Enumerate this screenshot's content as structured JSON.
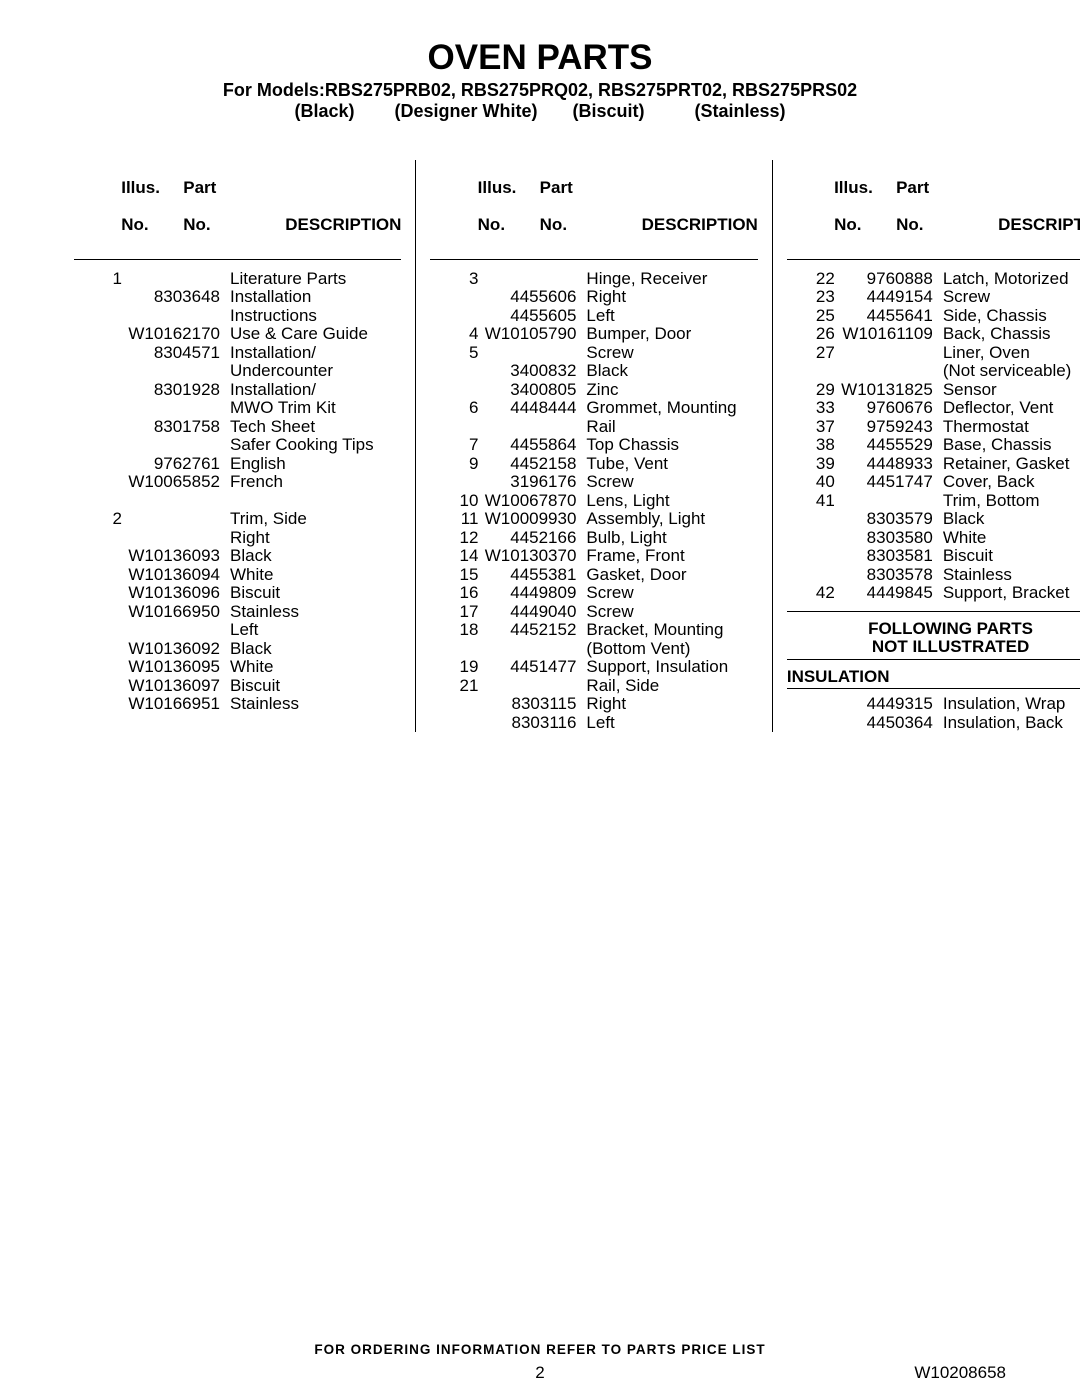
{
  "title": "OVEN PARTS",
  "subtitle_line1": "For Models:RBS275PRB02, RBS275PRQ02, RBS275PRT02, RBS275PRS02",
  "subtitle_line2": "(Black)        (Designer White)       (Biscuit)          (Stainless)",
  "headers": {
    "illus_line1": "Illus.",
    "illus_line2": "No.",
    "part_line1": "Part",
    "part_line2": "No.",
    "desc": "DESCRIPTION"
  },
  "footer": "FOR ORDERING INFORMATION REFER TO PARTS PRICE LIST",
  "page_number": "2",
  "doc_number": "W10208658",
  "section_not_illustrated_line1": "FOLLOWING PARTS",
  "section_not_illustrated_line2": "NOT ILLUSTRATED",
  "section_insulation": "INSULATION",
  "col1": [
    {
      "illus": "1",
      "part": "",
      "desc": "Literature Parts"
    },
    {
      "illus": "",
      "part": "8303648",
      "desc": "Installation"
    },
    {
      "illus": "",
      "part": "",
      "desc": "Instructions"
    },
    {
      "illus": "",
      "part": "W10162170",
      "desc": "Use & Care Guide"
    },
    {
      "illus": "",
      "part": "8304571",
      "desc": "Installation/"
    },
    {
      "illus": "",
      "part": "",
      "desc": "Undercounter"
    },
    {
      "illus": "",
      "part": "8301928",
      "desc": "Installation/"
    },
    {
      "illus": "",
      "part": "",
      "desc": "MWO Trim Kit"
    },
    {
      "illus": "",
      "part": "8301758",
      "desc": "Tech Sheet"
    },
    {
      "illus": "",
      "part": "",
      "desc": "Safer Cooking Tips"
    },
    {
      "illus": "",
      "part": "9762761",
      "desc": "English"
    },
    {
      "illus": "",
      "part": "W10065852",
      "desc": "French"
    },
    {
      "illus": "",
      "part": "",
      "desc": ""
    },
    {
      "illus": "2",
      "part": "",
      "desc": "Trim, Side"
    },
    {
      "illus": "",
      "part": "",
      "desc": "Right"
    },
    {
      "illus": "",
      "part": "W10136093",
      "desc": "Black"
    },
    {
      "illus": "",
      "part": "W10136094",
      "desc": "White"
    },
    {
      "illus": "",
      "part": "W10136096",
      "desc": "Biscuit"
    },
    {
      "illus": "",
      "part": "W10166950",
      "desc": "Stainless"
    },
    {
      "illus": "",
      "part": "",
      "desc": "Left"
    },
    {
      "illus": "",
      "part": "W10136092",
      "desc": "Black"
    },
    {
      "illus": "",
      "part": "W10136095",
      "desc": "White"
    },
    {
      "illus": "",
      "part": "W10136097",
      "desc": "Biscuit"
    },
    {
      "illus": "",
      "part": "W10166951",
      "desc": "Stainless"
    }
  ],
  "col2": [
    {
      "illus": "3",
      "part": "",
      "desc": "Hinge, Receiver"
    },
    {
      "illus": "",
      "part": "4455606",
      "desc": "Right"
    },
    {
      "illus": "",
      "part": "4455605",
      "desc": "Left"
    },
    {
      "illus": "4",
      "part": "W10105790",
      "desc": "Bumper, Door"
    },
    {
      "illus": "5",
      "part": "",
      "desc": "Screw"
    },
    {
      "illus": "",
      "part": "3400832",
      "desc": "Black"
    },
    {
      "illus": "",
      "part": "3400805",
      "desc": "Zinc"
    },
    {
      "illus": "6",
      "part": "4448444",
      "desc": "Grommet, Mounting"
    },
    {
      "illus": "",
      "part": "",
      "desc": "Rail"
    },
    {
      "illus": "7",
      "part": "4455864",
      "desc": "Top Chassis"
    },
    {
      "illus": "9",
      "part": "4452158",
      "desc": "Tube, Vent"
    },
    {
      "illus": "",
      "part": "3196176",
      "desc": "Screw"
    },
    {
      "illus": "10",
      "part": "W10067870",
      "desc": "Lens, Light"
    },
    {
      "illus": "11",
      "part": "W10009930",
      "desc": "Assembly, Light"
    },
    {
      "illus": "12",
      "part": "4452166",
      "desc": "Bulb, Light"
    },
    {
      "illus": "14",
      "part": "W10130370",
      "desc": "Frame, Front"
    },
    {
      "illus": "15",
      "part": "4455381",
      "desc": "Gasket, Door"
    },
    {
      "illus": "16",
      "part": "4449809",
      "desc": "Screw"
    },
    {
      "illus": "17",
      "part": "4449040",
      "desc": "Screw"
    },
    {
      "illus": "18",
      "part": "4452152",
      "desc": "Bracket, Mounting"
    },
    {
      "illus": "",
      "part": "",
      "desc": "(Bottom Vent)"
    },
    {
      "illus": "19",
      "part": "4451477",
      "desc": "Support, Insulation"
    },
    {
      "illus": "21",
      "part": "",
      "desc": "Rail, Side"
    },
    {
      "illus": "",
      "part": "8303115",
      "desc": "Right"
    },
    {
      "illus": "",
      "part": "8303116",
      "desc": "Left"
    }
  ],
  "col3_main": [
    {
      "illus": "22",
      "part": "9760888",
      "desc": "Latch, Motorized"
    },
    {
      "illus": "23",
      "part": "4449154",
      "desc": "Screw"
    },
    {
      "illus": "25",
      "part": "4455641",
      "desc": "Side, Chassis"
    },
    {
      "illus": "26",
      "part": "W10161109",
      "desc": "Back, Chassis"
    },
    {
      "illus": "27",
      "part": "",
      "desc": "Liner, Oven"
    },
    {
      "illus": "",
      "part": "",
      "desc": "(Not serviceable)"
    },
    {
      "illus": "29",
      "part": "W10131825",
      "desc": "Sensor"
    },
    {
      "illus": "33",
      "part": "9760676",
      "desc": "Deflector, Vent"
    },
    {
      "illus": "37",
      "part": "9759243",
      "desc": "Thermostat"
    },
    {
      "illus": "38",
      "part": "4455529",
      "desc": "Base, Chassis"
    },
    {
      "illus": "39",
      "part": "4448933",
      "desc": "Retainer, Gasket"
    },
    {
      "illus": "40",
      "part": "4451747",
      "desc": "Cover, Back"
    },
    {
      "illus": "41",
      "part": "",
      "desc": "Trim, Bottom"
    },
    {
      "illus": "",
      "part": "8303579",
      "desc": "Black"
    },
    {
      "illus": "",
      "part": "8303580",
      "desc": "White"
    },
    {
      "illus": "",
      "part": "8303581",
      "desc": "Biscuit"
    },
    {
      "illus": "",
      "part": "8303578",
      "desc": "Stainless"
    },
    {
      "illus": "42",
      "part": "4449845",
      "desc": "Support, Bracket"
    }
  ],
  "col3_insulation": [
    {
      "illus": "",
      "part": "4449315",
      "desc": "Insulation, Wrap"
    },
    {
      "illus": "",
      "part": "4450364",
      "desc": "Insulation, Back"
    }
  ]
}
